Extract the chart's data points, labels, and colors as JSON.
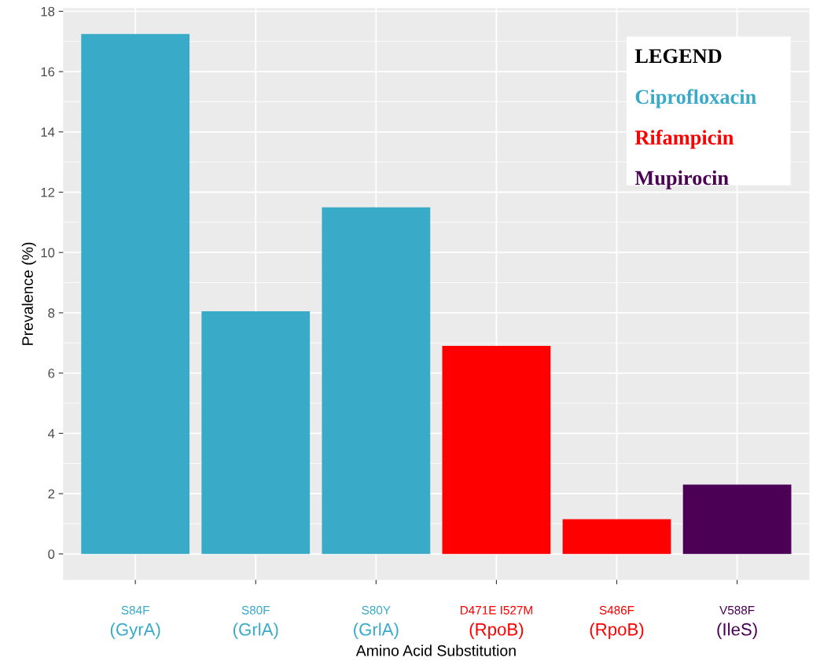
{
  "chart_data": {
    "type": "bar",
    "xlabel": "Amino Acid Substitution",
    "ylabel": "Prevalence (%)",
    "categories": [
      "S84F\n(GyrA)",
      "S80F\n(GrlA)",
      "S80Y\n(GrlA)",
      "D471E I527M\n(RpoB)",
      "S486F\n(RpoB)",
      "V588F\n(IleS)"
    ],
    "series": [
      {
        "name": "Ciprofloxacin",
        "color": "#39abc9",
        "values": [
          17.25,
          8.05,
          11.5,
          null,
          null,
          null
        ]
      },
      {
        "name": "Rifampicin",
        "color": "#ff0000",
        "values": [
          null,
          null,
          null,
          6.9,
          1.15,
          null
        ]
      },
      {
        "name": "Mupirocin",
        "color": "#4b0055",
        "values": [
          null,
          null,
          null,
          null,
          null,
          2.3
        ]
      }
    ],
    "legend_title": "LEGEND",
    "legend": "top right",
    "ylim": [
      -0.86,
      18.11
    ],
    "yticks": [
      0,
      2,
      4,
      6,
      8,
      10,
      12,
      14,
      16,
      18
    ],
    "grid": true
  }
}
